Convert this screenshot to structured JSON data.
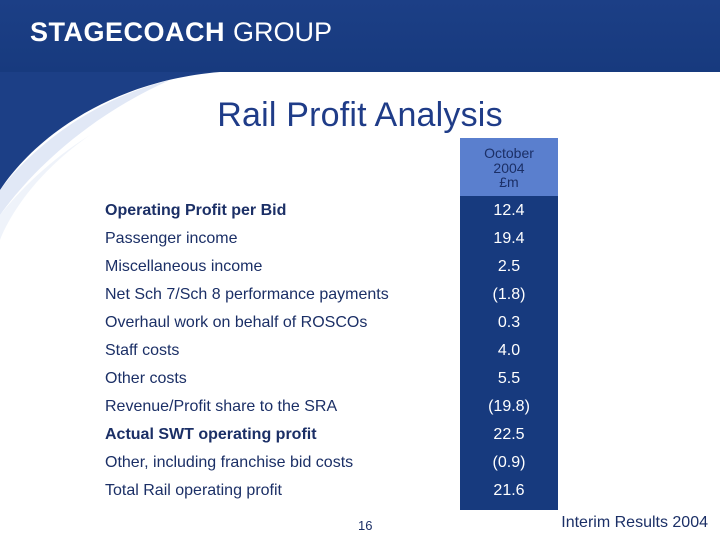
{
  "header": {
    "logo_bold": "STAGECOACH",
    "logo_light": "GROUP",
    "brand_color": "#1c3f86"
  },
  "title": "Rail Profit Analysis",
  "column_header": {
    "line1": "October",
    "line2": "2004",
    "line3": "£m"
  },
  "rows": [
    {
      "label": "Operating Profit per Bid",
      "value": "12.4",
      "bold": true
    },
    {
      "label": "Passenger income",
      "value": "19.4",
      "bold": false
    },
    {
      "label": "Miscellaneous income",
      "value": "2.5",
      "bold": false
    },
    {
      "label": "Net Sch 7/Sch 8 performance payments",
      "value": "(1.8)",
      "bold": false
    },
    {
      "label": "Overhaul work on behalf of ROSCOs",
      "value": "0.3",
      "bold": false
    },
    {
      "label": "Staff costs",
      "value": "4.0",
      "bold": false
    },
    {
      "label": "Other costs",
      "value": "5.5",
      "bold": false
    },
    {
      "label": "Revenue/Profit share to the SRA",
      "value": "(19.8)",
      "bold": false
    },
    {
      "label": "Actual SWT operating profit",
      "value": "22.5",
      "bold": true
    },
    {
      "label": "Other, including franchise bid costs",
      "value": "(0.9)",
      "bold": false
    },
    {
      "label": "Total Rail operating profit",
      "value": "21.6",
      "bold": false
    }
  ],
  "page_number": "16",
  "footer_text": "Interim Results 2004"
}
